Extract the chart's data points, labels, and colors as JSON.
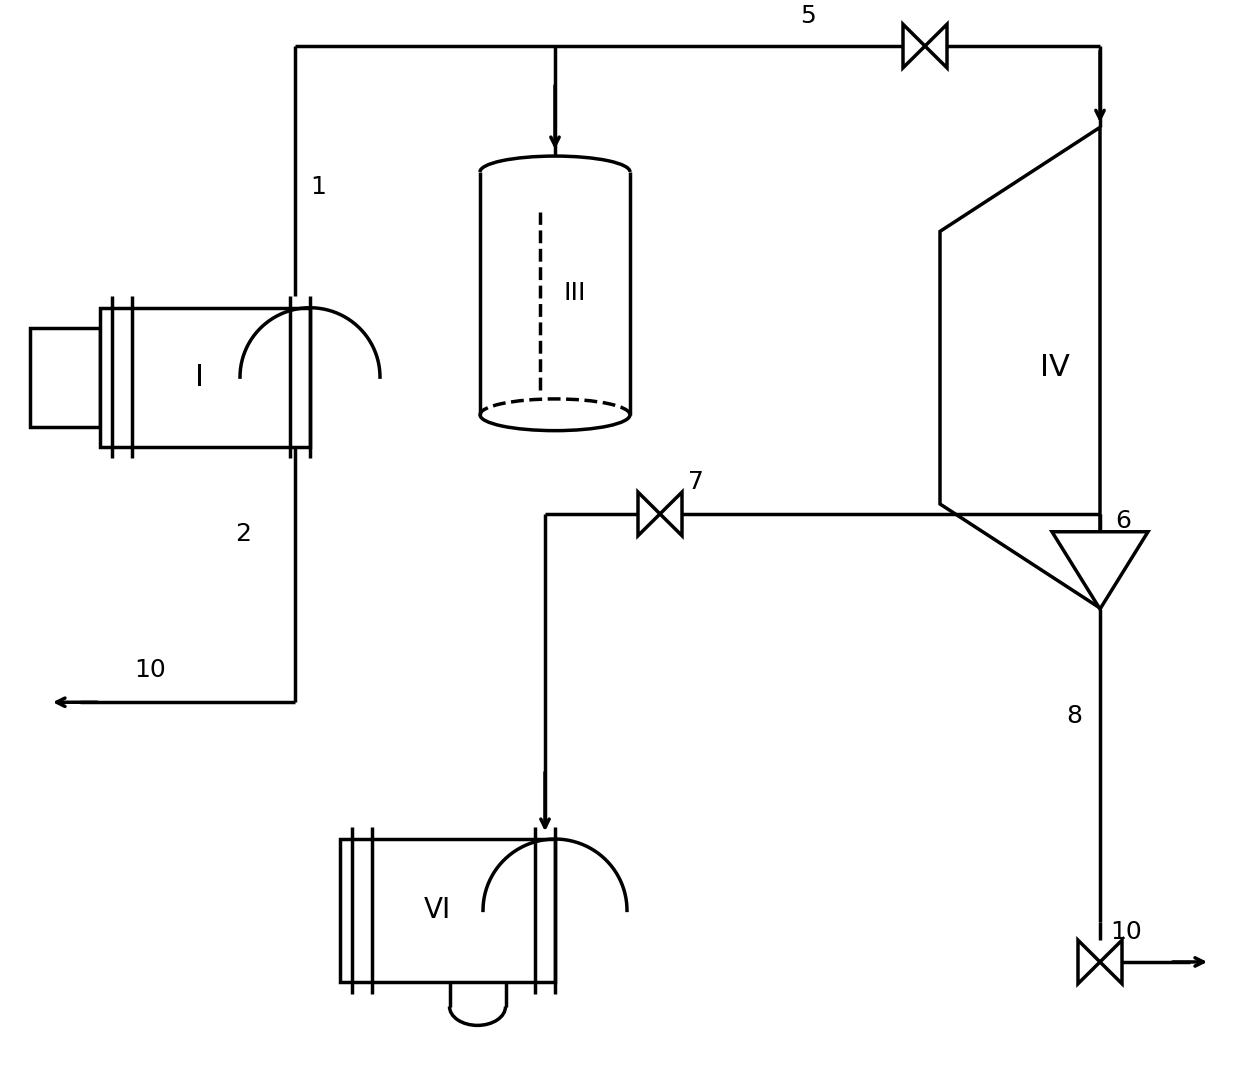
{
  "bg": "#ffffff",
  "lc": "#000000",
  "lw": 2.5,
  "fig_w": 12.4,
  "fig_h": 10.69,
  "dpi": 100,
  "xlim": [
    0,
    1240
  ],
  "ylim": [
    0,
    1069
  ]
}
